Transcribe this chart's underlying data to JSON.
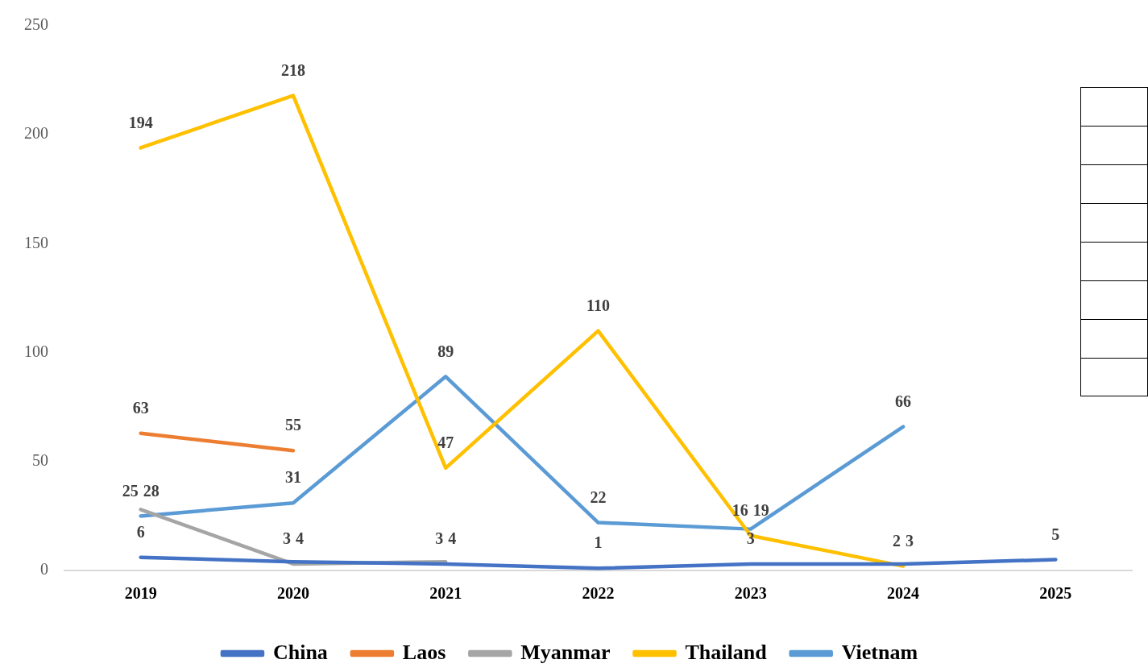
{
  "chart_data": {
    "type": "line",
    "categories": [
      "2019",
      "2020",
      "2021",
      "2022",
      "2023",
      "2024",
      "2025"
    ],
    "series": [
      {
        "name": "China",
        "color": "#4472c4",
        "values": [
          6,
          4,
          3,
          1,
          3,
          3,
          5
        ]
      },
      {
        "name": "Laos",
        "color": "#ed7d31",
        "values": [
          63,
          55,
          null,
          null,
          null,
          null,
          null
        ]
      },
      {
        "name": "Myanmar",
        "color": "#a5a5a5",
        "values": [
          28,
          3,
          4,
          null,
          null,
          null,
          null
        ]
      },
      {
        "name": "Thailand",
        "color": "#ffc000",
        "values": [
          194,
          218,
          47,
          110,
          16,
          2,
          null
        ]
      },
      {
        "name": "Vietnam",
        "color": "#5b9bd5",
        "values": [
          25,
          31,
          89,
          22,
          19,
          66,
          null
        ]
      }
    ],
    "ylim": [
      0,
      250
    ],
    "yticks": [
      0,
      50,
      100,
      150,
      200,
      250
    ],
    "grid": false,
    "legend": "bottom",
    "marker": "none",
    "line_style": "solid",
    "data_labels": true
  }
}
